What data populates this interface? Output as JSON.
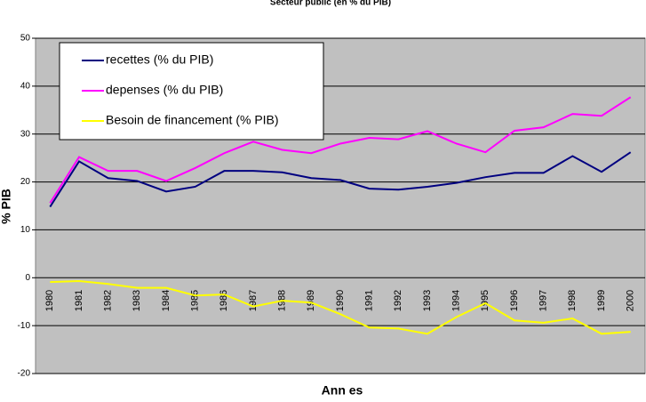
{
  "chart_data": {
    "type": "line",
    "title": "Secteur public (en % du PIB)",
    "xlabel": "Ann es",
    "ylabel": "% PIB",
    "categories": [
      "1980",
      "1981",
      "1982",
      "1983",
      "1984",
      "1985",
      "1986",
      "1987",
      "1988",
      "1989",
      "1990",
      "1991",
      "1992",
      "1993",
      "1994",
      "1995",
      "1996",
      "1997",
      "1998",
      "1999",
      "2000"
    ],
    "series": [
      {
        "name": "recettes (% du PIB)",
        "color": "#000080",
        "values": [
          14.8,
          24.3,
          20.8,
          20.2,
          18.0,
          19.0,
          22.3,
          22.3,
          22.0,
          20.8,
          20.4,
          18.6,
          18.4,
          19.0,
          19.8,
          21.0,
          21.9,
          21.9,
          25.4,
          22.1,
          26.2
        ]
      },
      {
        "name": "depenses (% du PIB)",
        "color": "#ff00ff",
        "values": [
          15.6,
          25.2,
          22.3,
          22.3,
          20.2,
          22.9,
          26.0,
          28.4,
          26.7,
          26.0,
          28.0,
          29.2,
          28.9,
          30.6,
          28.0,
          26.2,
          30.7,
          31.4,
          34.2,
          33.8,
          37.7
        ]
      },
      {
        "name": "Besoin de financement (% PIB)",
        "color": "#ffff00",
        "values": [
          -0.9,
          -0.7,
          -1.3,
          -2.1,
          -2.1,
          -3.7,
          -3.5,
          -6.0,
          -4.8,
          -5.2,
          -7.6,
          -10.4,
          -10.6,
          -11.7,
          -8.2,
          -5.3,
          -8.9,
          -9.4,
          -8.5,
          -11.7,
          -11.3
        ]
      }
    ],
    "ylim": [
      -20,
      50
    ],
    "yticks": [
      -20,
      -10,
      0,
      10,
      20,
      30,
      40,
      50
    ],
    "grid": true,
    "legend": "upper left",
    "background": "#c0c0c0"
  }
}
